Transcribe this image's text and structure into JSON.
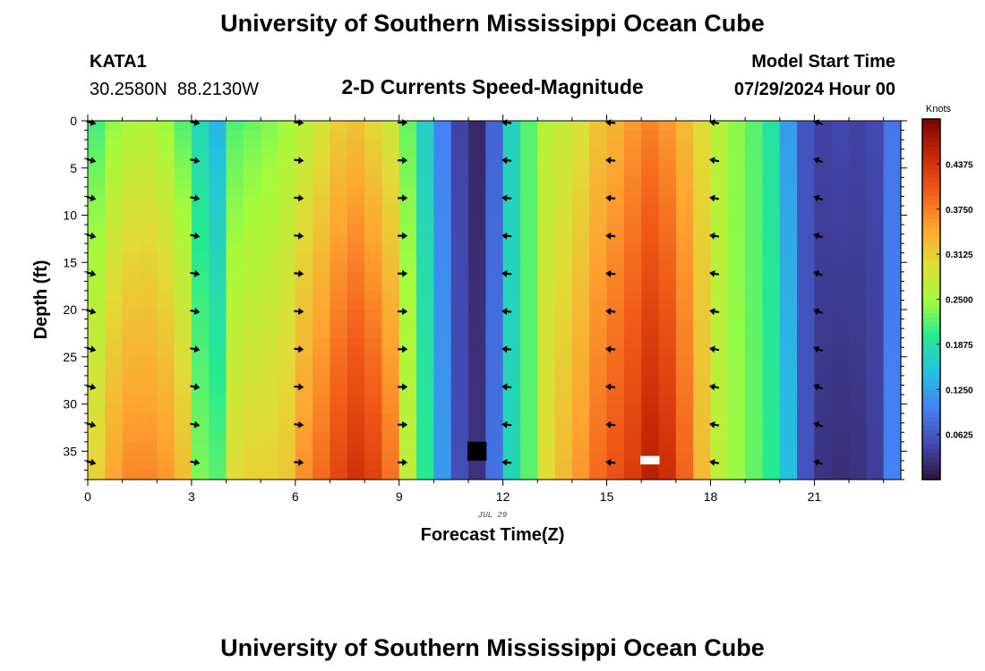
{
  "header": {
    "title": "University of Southern Mississippi Ocean Cube",
    "station_id": "KATA1",
    "station_coords": "30.2580N  88.2130W",
    "subtitle": "2-D Currents Speed-Magnitude",
    "model_start_label": "Model Start Time",
    "model_start_value": "07/29/2024 Hour 00"
  },
  "footer": {
    "title": "University of Southern Mississippi Ocean Cube"
  },
  "colors": {
    "background": "#ffffff",
    "text": "#000000",
    "missing_cells": [
      "#000000",
      "#ffffff"
    ]
  },
  "chart_data": {
    "type": "heatmap",
    "title": "2-D Currents Speed-Magnitude",
    "xlabel": "Forecast Time(Z)",
    "ylabel": "Depth (ft)",
    "x_date_label": "JUL 29",
    "xlim": [
      0,
      23.5
    ],
    "ylim": [
      0,
      38
    ],
    "y_inverted": true,
    "x_ticks": [
      0,
      3,
      6,
      9,
      12,
      15,
      18,
      21
    ],
    "x_tick_labels": [
      "0",
      "3",
      "6",
      "9",
      "12",
      "15",
      "18",
      "21"
    ],
    "y_ticks": [
      0,
      5,
      10,
      15,
      20,
      25,
      30,
      35
    ],
    "y_tick_labels": [
      "0",
      "5",
      "10",
      "15",
      "20",
      "25",
      "30",
      "35"
    ],
    "hour_step": 0.5,
    "depth_step": 1,
    "hourly_profiles": [
      {
        "hour": 0.0,
        "top": 0.21,
        "bottom": 0.31
      },
      {
        "hour": 0.5,
        "top": 0.24,
        "bottom": 0.35
      },
      {
        "hour": 1.0,
        "top": 0.255,
        "bottom": 0.37
      },
      {
        "hour": 1.5,
        "top": 0.26,
        "bottom": 0.37
      },
      {
        "hour": 2.0,
        "top": 0.245,
        "bottom": 0.36
      },
      {
        "hour": 2.5,
        "top": 0.215,
        "bottom": 0.33
      },
      {
        "hour": 3.0,
        "top": 0.175,
        "bottom": 0.235
      },
      {
        "hour": 3.5,
        "top": 0.14,
        "bottom": 0.22
      },
      {
        "hour": 4.0,
        "top": 0.215,
        "bottom": 0.3
      },
      {
        "hour": 4.5,
        "top": 0.225,
        "bottom": 0.31
      },
      {
        "hour": 5.0,
        "top": 0.235,
        "bottom": 0.31
      },
      {
        "hour": 5.5,
        "top": 0.25,
        "bottom": 0.32
      },
      {
        "hour": 6.0,
        "top": 0.265,
        "bottom": 0.365
      },
      {
        "hour": 6.5,
        "top": 0.285,
        "bottom": 0.39
      },
      {
        "hour": 7.0,
        "top": 0.31,
        "bottom": 0.42
      },
      {
        "hour": 7.5,
        "top": 0.32,
        "bottom": 0.44
      },
      {
        "hour": 8.0,
        "top": 0.3,
        "bottom": 0.425
      },
      {
        "hour": 8.5,
        "top": 0.28,
        "bottom": 0.385
      },
      {
        "hour": 9.0,
        "top": 0.225,
        "bottom": 0.275
      },
      {
        "hour": 9.5,
        "top": 0.165,
        "bottom": 0.2
      },
      {
        "hour": 10.0,
        "top": 0.1,
        "bottom": 0.12
      },
      {
        "hour": 10.5,
        "top": 0.045,
        "bottom": 0.055
      },
      {
        "hour": 11.0,
        "top": 0.02,
        "bottom": 0.03
      },
      {
        "hour": 11.5,
        "top": 0.075,
        "bottom": 0.085
      },
      {
        "hour": 12.0,
        "top": 0.17,
        "bottom": 0.175
      },
      {
        "hour": 12.5,
        "top": 0.22,
        "bottom": 0.22
      },
      {
        "hour": 13.0,
        "top": 0.265,
        "bottom": 0.3
      },
      {
        "hour": 13.5,
        "top": 0.275,
        "bottom": 0.33
      },
      {
        "hour": 14.0,
        "top": 0.29,
        "bottom": 0.36
      },
      {
        "hour": 14.5,
        "top": 0.32,
        "bottom": 0.39
      },
      {
        "hour": 15.0,
        "top": 0.335,
        "bottom": 0.41
      },
      {
        "hour": 15.5,
        "top": 0.355,
        "bottom": 0.43
      },
      {
        "hour": 16.0,
        "top": 0.37,
        "bottom": 0.46
      },
      {
        "hour": 16.5,
        "top": 0.355,
        "bottom": 0.445
      },
      {
        "hour": 17.0,
        "top": 0.33,
        "bottom": 0.395
      },
      {
        "hour": 17.5,
        "top": 0.3,
        "bottom": 0.33
      },
      {
        "hour": 18.0,
        "top": 0.265,
        "bottom": 0.27
      },
      {
        "hour": 18.5,
        "top": 0.24,
        "bottom": 0.245
      },
      {
        "hour": 19.0,
        "top": 0.22,
        "bottom": 0.225
      },
      {
        "hour": 19.5,
        "top": 0.19,
        "bottom": 0.2
      },
      {
        "hour": 20.0,
        "top": 0.12,
        "bottom": 0.15
      },
      {
        "hour": 20.5,
        "top": 0.06,
        "bottom": 0.06
      },
      {
        "hour": 21.0,
        "top": 0.045,
        "bottom": 0.03
      },
      {
        "hour": 21.5,
        "top": 0.05,
        "bottom": 0.025
      },
      {
        "hour": 22.0,
        "top": 0.045,
        "bottom": 0.03
      },
      {
        "hour": 22.5,
        "top": 0.05,
        "bottom": 0.04
      },
      {
        "hour": 23.0,
        "top": 0.09,
        "bottom": 0.1
      }
    ],
    "missing_cells": [
      {
        "hour": 11.0,
        "depth_from": 34,
        "depth_to": 36,
        "color": "#000000"
      },
      {
        "hour": 16.0,
        "depth_from": 35.5,
        "depth_to": 36.4,
        "color": "#ffffff"
      }
    ],
    "vector_hours": [
      0,
      3,
      6,
      9,
      12,
      15,
      18,
      21
    ],
    "vector_depths": [
      0,
      4,
      8,
      12,
      16,
      20,
      24,
      28,
      32,
      36
    ],
    "vector_directions_deg": [
      15,
      10,
      5,
      0,
      185,
      185,
      190,
      200
    ],
    "colorbar": {
      "label": "Knots",
      "min": 0,
      "max": 0.5,
      "ticks": [
        0.0625,
        0.125,
        0.1875,
        0.25,
        0.3125,
        0.375,
        0.4375
      ],
      "tick_labels": [
        "0.0625",
        "0.1250",
        "0.1875",
        "0.2500",
        "0.3125",
        "0.3750",
        "0.4375"
      ],
      "colormap": "turbo"
    }
  }
}
